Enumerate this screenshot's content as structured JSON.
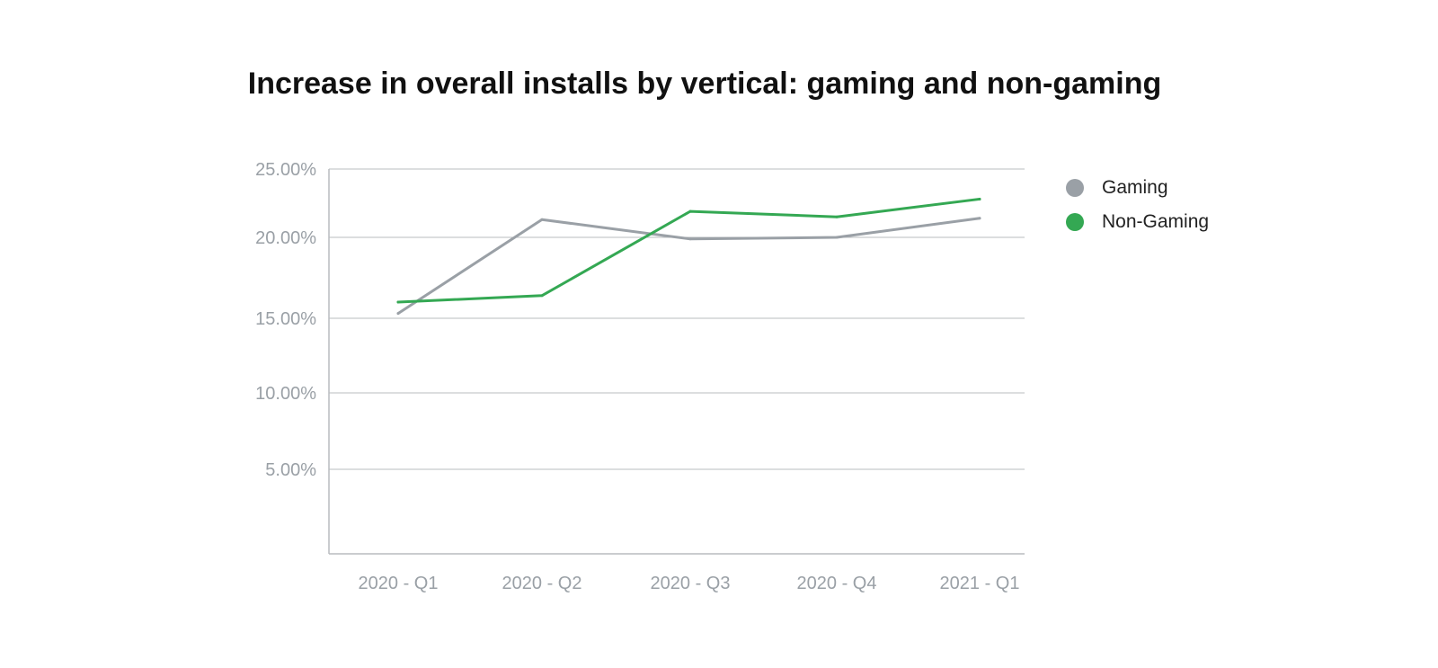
{
  "chart_data": {
    "type": "line",
    "title": "Increase in overall installs by vertical: gaming and non-gaming",
    "xlabel": "",
    "ylabel": "",
    "categories": [
      "2020 - Q1",
      "2020 - Q2",
      "2020 - Q3",
      "2020 - Q4",
      "2021 - Q1"
    ],
    "y_ticks": [
      {
        "value": 5,
        "label": "5.00%"
      },
      {
        "value": 10,
        "label": "10.00%"
      },
      {
        "value": 15,
        "label": "15.00%"
      },
      {
        "value": 20,
        "label": "20.00%"
      },
      {
        "value": 25,
        "label": "25.00%"
      }
    ],
    "ylim": [
      0,
      25
    ],
    "grid": true,
    "legend_position": "right",
    "series": [
      {
        "name": "Gaming",
        "color": "#9aa0a6",
        "values": [
          15.3,
          21.3,
          19.9,
          20.0,
          21.4
        ]
      },
      {
        "name": "Non-Gaming",
        "color": "#34a853",
        "values": [
          16.0,
          16.4,
          21.9,
          21.5,
          22.8
        ]
      }
    ]
  }
}
